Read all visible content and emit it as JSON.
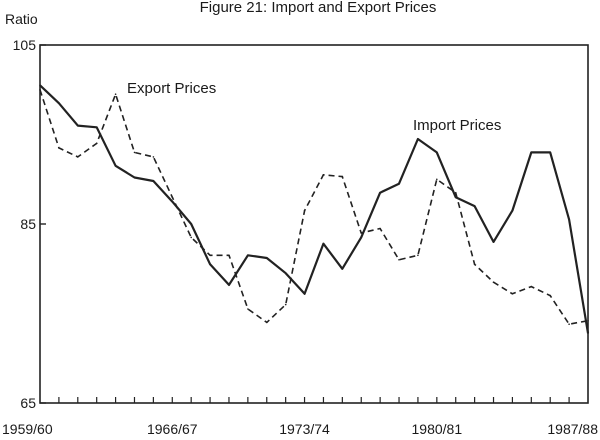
{
  "chart_data": {
    "type": "line",
    "title": "Figure 21: Import and Export Prices",
    "ylabel": "Ratio",
    "xlabel": "",
    "ylim": [
      65,
      105
    ],
    "yticks": [
      65,
      85,
      105
    ],
    "x_tick_labels": [
      "1959/60",
      "1966/67",
      "1973/74",
      "1980/81",
      "1987/88"
    ],
    "x_tick_years": [
      1959,
      1966,
      1973,
      1980,
      1987
    ],
    "grid": false,
    "series": [
      {
        "name": "Import Prices",
        "style": "solid",
        "color": "#222222",
        "x": [
          1959,
          1960,
          1961,
          1962,
          1963,
          1964,
          1965,
          1966,
          1967,
          1968,
          1969,
          1970,
          1971,
          1972,
          1973,
          1974,
          1975,
          1976,
          1977,
          1978,
          1979,
          1980,
          1981,
          1982,
          1983,
          1984,
          1985,
          1986,
          1987,
          1988
        ],
        "values": [
          100.5,
          98.5,
          96.0,
          95.8,
          91.5,
          90.2,
          89.8,
          87.5,
          85.0,
          80.5,
          78.2,
          81.5,
          81.2,
          79.5,
          77.2,
          82.8,
          80.0,
          83.5,
          88.5,
          89.5,
          94.5,
          93.0,
          88.0,
          87.0,
          83.0,
          86.5,
          93.0,
          93.0,
          85.5,
          72.8
        ]
      },
      {
        "name": "Export Prices",
        "style": "dashed",
        "color": "#222222",
        "x": [
          1959,
          1960,
          1961,
          1962,
          1963,
          1964,
          1965,
          1966,
          1967,
          1968,
          1969,
          1970,
          1971,
          1972,
          1973,
          1974,
          1975,
          1976,
          1977,
          1978,
          1979,
          1980,
          1981,
          1982,
          1983,
          1984,
          1985,
          1986,
          1987,
          1988
        ],
        "values": [
          100.0,
          93.5,
          92.5,
          94.0,
          99.5,
          93.0,
          92.5,
          88.0,
          83.5,
          81.5,
          81.5,
          75.5,
          74.0,
          76.0,
          86.5,
          90.5,
          90.3,
          84.0,
          84.5,
          81.0,
          81.5,
          90.0,
          88.5,
          80.5,
          78.5,
          77.2,
          78.0,
          77.0,
          73.8,
          74.2
        ]
      }
    ],
    "series_label_text": {
      "export": "Export Prices",
      "import": "Import Prices"
    }
  }
}
